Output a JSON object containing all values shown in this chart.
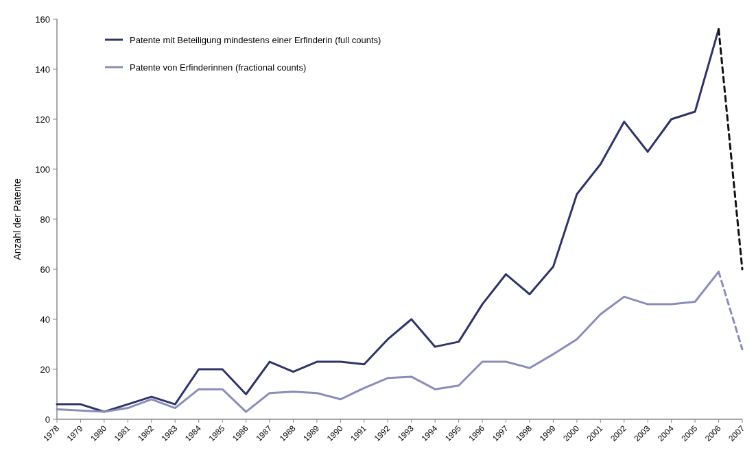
{
  "chart_data": {
    "type": "line",
    "ylabel": "Anzahl der Patente",
    "categories": [
      "1978",
      "1979",
      "1980",
      "1981",
      "1982",
      "1983",
      "1984",
      "1985",
      "1986",
      "1987",
      "1988",
      "1989",
      "1990",
      "1991",
      "1992",
      "1993",
      "1994",
      "1995",
      "1996",
      "1997",
      "1998",
      "1999",
      "2000",
      "2001",
      "2002",
      "2003",
      "2004",
      "2005",
      "2006",
      "2007"
    ],
    "series": [
      {
        "name": "Patente mit Beteiligung mindestens einer Erfinderin (full counts)",
        "color": "#2e3468",
        "values": [
          6,
          6,
          3,
          6,
          9,
          6,
          20,
          20,
          10,
          23,
          19,
          23,
          23,
          22,
          32,
          40,
          29,
          31,
          46,
          58,
          50,
          61,
          90,
          102,
          119,
          107,
          120,
          123,
          156,
          null
        ]
      },
      {
        "name": "Patente von Erfinderinnen (fractional counts)",
        "color": "#8a8cba",
        "values": [
          4,
          3.5,
          3,
          4.5,
          8,
          4.5,
          12,
          12,
          3,
          10.5,
          11,
          10.5,
          8,
          12.5,
          16.5,
          17,
          12,
          13.5,
          23,
          23,
          20.5,
          26,
          32,
          42,
          49,
          46,
          46,
          47,
          59,
          null
        ]
      },
      {
        "color": "#111111",
        "line_style": "dashed",
        "values": [
          null,
          null,
          null,
          null,
          null,
          null,
          null,
          null,
          null,
          null,
          null,
          null,
          null,
          null,
          null,
          null,
          null,
          null,
          null,
          null,
          null,
          null,
          null,
          null,
          null,
          null,
          null,
          null,
          156,
          60
        ]
      },
      {
        "color": "#8a8cba",
        "line_style": "dashed",
        "values": [
          null,
          null,
          null,
          null,
          null,
          null,
          null,
          null,
          null,
          null,
          null,
          null,
          null,
          null,
          null,
          null,
          null,
          null,
          null,
          null,
          null,
          null,
          null,
          null,
          null,
          null,
          null,
          null,
          59,
          28
        ]
      }
    ],
    "ylim": [
      0,
      160
    ],
    "yticks": [
      0,
      20,
      40,
      60,
      80,
      100,
      120,
      140,
      160
    ],
    "grid": false,
    "legend": "top left",
    "marker": "none",
    "line_style": "solid"
  }
}
